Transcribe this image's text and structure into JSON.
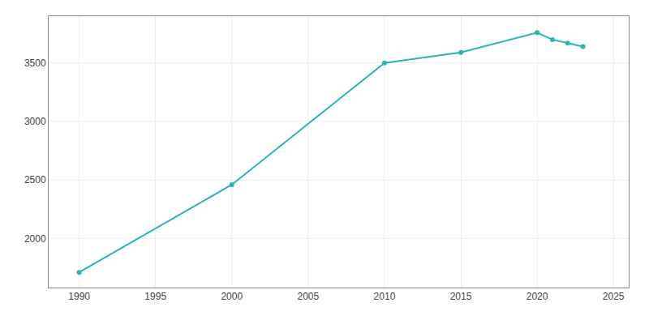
{
  "chart_data": {
    "type": "line",
    "x": [
      1990,
      2000,
      2010,
      2015,
      2020,
      2021,
      2022,
      2023
    ],
    "values": [
      1710,
      2460,
      3500,
      3590,
      3760,
      3700,
      3670,
      3640
    ],
    "color": "#2ab5b5",
    "marker": "circle",
    "line_style": "solid",
    "xlim": [
      1988,
      2026
    ],
    "ylim": [
      1580,
      3900
    ],
    "xticks": [
      1990,
      1995,
      2000,
      2005,
      2010,
      2015,
      2020,
      2025
    ],
    "yticks": [
      2000,
      2500,
      3000,
      3500
    ],
    "grid": true
  }
}
